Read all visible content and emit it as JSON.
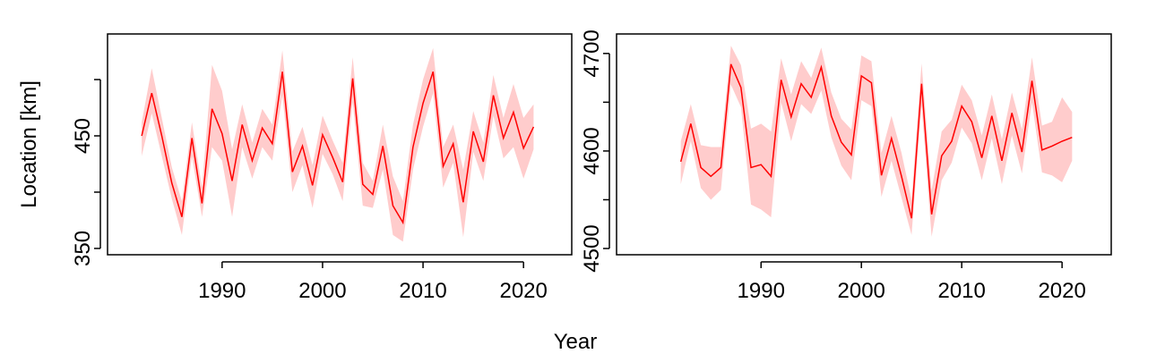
{
  "chart_data": [
    {
      "type": "line",
      "ylabel": "Location [km]",
      "x": [
        1982,
        1983,
        1984,
        1985,
        1986,
        1987,
        1988,
        1989,
        1990,
        1991,
        1992,
        1993,
        1994,
        1995,
        1996,
        1997,
        1998,
        1999,
        2000,
        2001,
        2002,
        2003,
        2004,
        2005,
        2006,
        2007,
        2008,
        2009,
        2010,
        2011,
        2012,
        2013,
        2014,
        2015,
        2016,
        2017,
        2018,
        2019,
        2020,
        2021
      ],
      "values": [
        450,
        488,
        450,
        408,
        378,
        448,
        390,
        474,
        452,
        410,
        460,
        428,
        457,
        443,
        507,
        418,
        441,
        406,
        451,
        431,
        409,
        501,
        407,
        398,
        441,
        388,
        373,
        440,
        479,
        507,
        423,
        443,
        391,
        454,
        427,
        486,
        448,
        471,
        439,
        458
      ],
      "lower": [
        432,
        470,
        432,
        394,
        362,
        432,
        378,
        440,
        428,
        378,
        440,
        412,
        440,
        428,
        486,
        400,
        424,
        386,
        434,
        416,
        392,
        480,
        388,
        386,
        420,
        362,
        356,
        420,
        458,
        488,
        404,
        426,
        360,
        436,
        410,
        468,
        430,
        440,
        412,
        438
      ],
      "upper": [
        462,
        510,
        466,
        422,
        392,
        462,
        404,
        513,
        490,
        438,
        478,
        444,
        474,
        460,
        526,
        436,
        458,
        424,
        468,
        446,
        426,
        520,
        426,
        410,
        460,
        414,
        392,
        460,
        500,
        528,
        440,
        460,
        420,
        472,
        444,
        504,
        466,
        496,
        466,
        478
      ],
      "color": "#ff0000",
      "band_color": "#ffcccc",
      "xlim": [
        1978.6,
        2024.8
      ],
      "xticks": [
        1990,
        2000,
        2010,
        2020
      ],
      "ylim": [
        344.4,
        540.5
      ],
      "yticks": [
        350,
        450
      ],
      "yminor": [
        400,
        500
      ]
    },
    {
      "type": "line",
      "x": [
        1982,
        1983,
        1984,
        1985,
        1986,
        1987,
        1988,
        1989,
        1990,
        1991,
        1992,
        1993,
        1994,
        1995,
        1996,
        1997,
        1998,
        1999,
        2000,
        2001,
        2002,
        2003,
        2004,
        2005,
        2006,
        2007,
        2008,
        2009,
        2010,
        2011,
        2012,
        2013,
        2014,
        2015,
        2016,
        2017,
        2018,
        2019,
        2020,
        2021
      ],
      "values": [
        4589,
        4628,
        4583,
        4574,
        4583,
        4689,
        4665,
        4583,
        4586,
        4574,
        4673,
        4635,
        4669,
        4655,
        4686,
        4636,
        4609,
        4596,
        4677,
        4670,
        4575,
        4613,
        4574,
        4531,
        4669,
        4535,
        4595,
        4610,
        4646,
        4630,
        4593,
        4636,
        4590,
        4639,
        4599,
        4672,
        4601,
        4605,
        4610,
        4614
      ],
      "lower": [
        4566,
        4610,
        4562,
        4550,
        4560,
        4668,
        4645,
        4545,
        4540,
        4532,
        4650,
        4610,
        4648,
        4638,
        4662,
        4614,
        4585,
        4570,
        4652,
        4646,
        4553,
        4590,
        4552,
        4514,
        4646,
        4512,
        4570,
        4588,
        4624,
        4608,
        4570,
        4613,
        4566,
        4616,
        4577,
        4650,
        4578,
        4575,
        4568,
        4590
      ],
      "upper": [
        4610,
        4648,
        4606,
        4604,
        4604,
        4708,
        4688,
        4623,
        4628,
        4620,
        4695,
        4658,
        4692,
        4675,
        4706,
        4660,
        4633,
        4622,
        4698,
        4692,
        4598,
        4636,
        4598,
        4550,
        4690,
        4560,
        4620,
        4632,
        4668,
        4652,
        4616,
        4658,
        4612,
        4660,
        4622,
        4696,
        4626,
        4630,
        4655,
        4640
      ],
      "color": "#ff0000",
      "band_color": "#ffcccc",
      "xlim": [
        1975.6,
        2024.9
      ],
      "xticks": [
        1990,
        2000,
        2010,
        2020
      ],
      "ylim": [
        4493.6,
        4720
      ],
      "yticks": [
        4500,
        4600,
        4700
      ],
      "yminor": [
        4550,
        4650
      ]
    }
  ],
  "xlabel": "Year"
}
